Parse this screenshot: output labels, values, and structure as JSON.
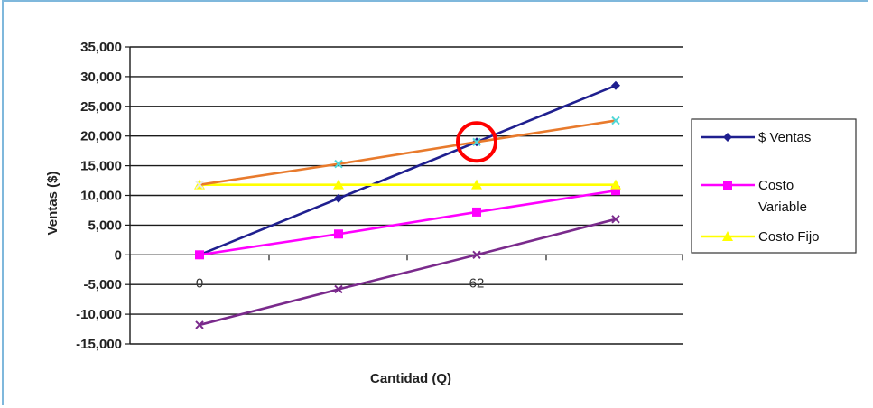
{
  "chart_data": {
    "type": "line",
    "title": "",
    "xlabel": "Cantidad (Q)",
    "ylabel": "Ventas ($)",
    "ylim": [
      -15000,
      35000
    ],
    "y_ticks": [
      "35,000",
      "30,000",
      "25,000",
      "20,000",
      "15,000",
      "10,000",
      "5,000",
      "0",
      "-5,000",
      "-10,000",
      "-15,000"
    ],
    "y_tick_values": [
      35000,
      30000,
      25000,
      20000,
      15000,
      10000,
      5000,
      0,
      -5000,
      -10000,
      -15000
    ],
    "categories": [
      "0",
      "",
      "62",
      ""
    ],
    "grid": true,
    "legend_position": "right",
    "series": [
      {
        "name": "$ Ventas",
        "color": "#1f1f8f",
        "marker": "diamond",
        "values": [
          0,
          9500,
          19000,
          28500
        ]
      },
      {
        "name": "Costo Variable",
        "color": "#ff00ff",
        "marker": "square",
        "values": [
          0,
          3500,
          7200,
          10800
        ]
      },
      {
        "name": "Costo Fijo",
        "color": "#ffff00",
        "marker": "triangle",
        "values": [
          11800,
          11800,
          11800,
          11800
        ]
      },
      {
        "name": "",
        "color": "#e87a2c",
        "marker": "x",
        "values": [
          11800,
          15300,
          19000,
          22600
        ]
      },
      {
        "name": "",
        "color": "#7a2a8c",
        "marker": "x",
        "values": [
          -11800,
          -5800,
          0,
          6000
        ]
      }
    ],
    "annotations": [
      {
        "type": "circle",
        "color": "#ff0000",
        "x_index": 2,
        "y": 19000
      }
    ]
  }
}
